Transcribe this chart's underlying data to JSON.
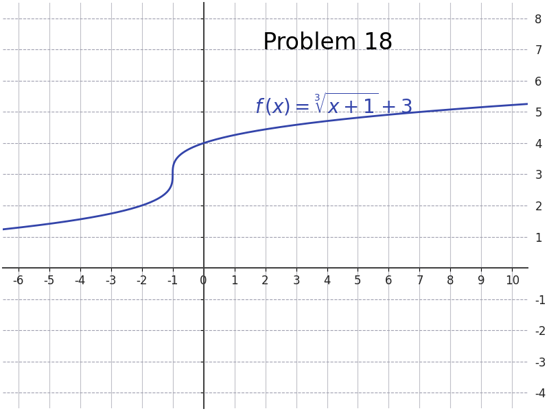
{
  "title": "Problem 18",
  "xlim": [
    -6.5,
    10.5
  ],
  "ylim": [
    -4.5,
    8.5
  ],
  "xticks": [
    -6,
    -5,
    -4,
    -3,
    -2,
    -1,
    0,
    1,
    2,
    3,
    4,
    5,
    6,
    7,
    8,
    9,
    10
  ],
  "yticks": [
    -4,
    -3,
    -2,
    -1,
    1,
    2,
    3,
    4,
    5,
    6,
    7,
    8
  ],
  "curve_color": "#3344aa",
  "vgrid_color": "#c0c0c8",
  "hgrid_color": "#a0a0b0",
  "axis_color": "#444444",
  "background_color": "#ffffff",
  "title_fontsize": 24,
  "formula_fontsize": 20,
  "curve_linewidth": 2.0,
  "tick_fontsize": 12
}
